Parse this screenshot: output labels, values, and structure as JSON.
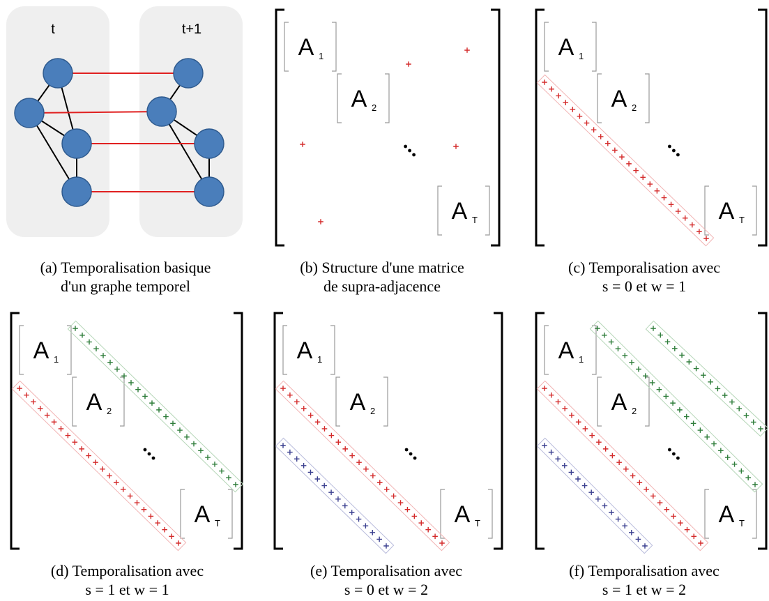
{
  "panels": [
    {
      "id": "a",
      "type": "temporal-graph",
      "layer_labels": [
        "t",
        "t+1"
      ],
      "caption_lines": [
        "(a) Temporalisation basique",
        "d'un graphe temporel"
      ]
    },
    {
      "id": "b",
      "type": "supra-adjacency",
      "block_labels": [
        "A",
        "A",
        "A"
      ],
      "block_subscripts": [
        "1",
        "2",
        "T"
      ],
      "ellipsis": "...",
      "caption_lines": [
        "(b) Structure d'une matrice",
        "de supra-adjacence"
      ]
    },
    {
      "id": "c",
      "type": "supra-adjacency",
      "block_labels": [
        "A",
        "A",
        "A"
      ],
      "block_subscripts": [
        "1",
        "2",
        "T"
      ],
      "caption_lines": [
        "(c) Temporalisation avec",
        "s = 0 et w = 1"
      ]
    },
    {
      "id": "d",
      "type": "supra-adjacency",
      "block_labels": [
        "A",
        "A",
        "A"
      ],
      "block_subscripts": [
        "1",
        "2",
        "T"
      ],
      "caption_lines": [
        "(d) Temporalisation avec",
        "s = 1 et w = 1"
      ]
    },
    {
      "id": "e",
      "type": "supra-adjacency",
      "block_labels": [
        "A",
        "A",
        "A"
      ],
      "block_subscripts": [
        "1",
        "2",
        "T"
      ],
      "caption_lines": [
        "(e) Temporalisation avec",
        "s = 0 et w = 2"
      ]
    },
    {
      "id": "f",
      "type": "supra-adjacency",
      "block_labels": [
        "A",
        "A",
        "A"
      ],
      "block_subscripts": [
        "1",
        "2",
        "T"
      ],
      "caption_lines": [
        "(f) Temporalisation avec",
        "s = 1 et w = 2"
      ]
    }
  ],
  "colors": {
    "node_fill": "#4a7ebb",
    "node_stroke": "#2f5b8f",
    "layer_bg": "#efefef",
    "inter_edge": "#e02020",
    "intra_edge": "#000000",
    "plus_red": "#d42a2a",
    "plus_green": "#2e7d3a",
    "plus_blue": "#3a3f8f",
    "band_red": "#f2b5b5",
    "band_green": "#b7d7b9",
    "band_blue": "#b9bcdc"
  }
}
